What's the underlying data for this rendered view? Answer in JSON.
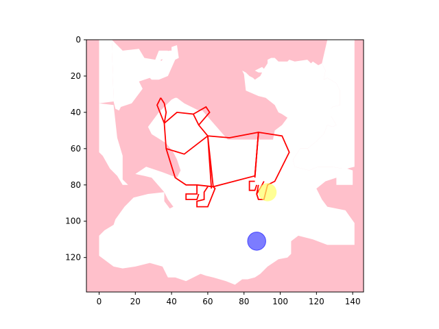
{
  "figure": {
    "background": "#ffffff",
    "x_range": [
      -7,
      146
    ],
    "y_range": [
      0,
      139
    ],
    "x_ticks": [
      0,
      20,
      40,
      60,
      80,
      100,
      120,
      140
    ],
    "y_ticks": [
      0,
      20,
      40,
      60,
      80,
      100,
      120
    ],
    "y_inverted": true
  },
  "board": {
    "fill_color": "#ffc0cb",
    "white_regions": [
      [
        [
          7,
          0
        ],
        [
          13,
          6
        ],
        [
          22,
          5
        ],
        [
          25,
          10
        ],
        [
          31,
          11
        ],
        [
          33,
          6
        ],
        [
          38,
          6
        ],
        [
          37,
          10
        ],
        [
          34,
          11
        ],
        [
          36,
          19
        ],
        [
          35,
          16
        ],
        [
          33,
          15
        ],
        [
          34,
          12
        ],
        [
          35,
          11
        ],
        [
          34,
          7
        ],
        [
          39,
          6
        ],
        [
          40,
          6
        ],
        [
          40,
          4
        ],
        [
          43,
          3
        ],
        [
          44,
          10
        ],
        [
          42,
          11
        ],
        [
          38,
          20
        ],
        [
          33,
          22
        ],
        [
          29,
          22
        ],
        [
          28,
          21
        ],
        [
          22,
          23
        ],
        [
          24,
          27
        ],
        [
          18,
          35
        ],
        [
          12,
          37
        ],
        [
          11,
          39
        ],
        [
          9,
          38
        ],
        [
          8,
          34
        ]
      ],
      [
        [
          0,
          35
        ],
        [
          8,
          36
        ],
        [
          10,
          54
        ],
        [
          13,
          64
        ],
        [
          13,
          77
        ],
        [
          16,
          80
        ],
        [
          20,
          74
        ],
        [
          26,
          70
        ],
        [
          35,
          73
        ],
        [
          43,
          76
        ],
        [
          45,
          72
        ],
        [
          43,
          66
        ],
        [
          41,
          62
        ],
        [
          37,
          57
        ],
        [
          29,
          52
        ],
        [
          27,
          48
        ],
        [
          33,
          40
        ],
        [
          40,
          33
        ],
        [
          42,
          32
        ],
        [
          43,
          32
        ],
        [
          47,
          35
        ],
        [
          55,
          39
        ],
        [
          57,
          39
        ],
        [
          71,
          55
        ],
        [
          96,
          55
        ],
        [
          97,
          50
        ],
        [
          101,
          47
        ],
        [
          104,
          43
        ],
        [
          101,
          41
        ],
        [
          99,
          40
        ],
        [
          97,
          36
        ],
        [
          92,
          32
        ],
        [
          88,
          31
        ],
        [
          81,
          28
        ],
        [
          80,
          19
        ],
        [
          79,
          17
        ],
        [
          81,
          18
        ],
        [
          83,
          20
        ],
        [
          85,
          21
        ],
        [
          86,
          22
        ],
        [
          89,
          20
        ],
        [
          90,
          18
        ],
        [
          88,
          18
        ],
        [
          86,
          17
        ],
        [
          90,
          15
        ],
        [
          91,
          16
        ],
        [
          93,
          13
        ],
        [
          93,
          11
        ],
        [
          95,
          10
        ],
        [
          97,
          10
        ],
        [
          99,
          12
        ],
        [
          104,
          12
        ],
        [
          105,
          11
        ],
        [
          108,
          12
        ],
        [
          115,
          11
        ],
        [
          117,
          13
        ],
        [
          118,
          12
        ],
        [
          121,
          14
        ],
        [
          123,
          13
        ],
        [
          125,
          17
        ],
        [
          124,
          22
        ],
        [
          126,
          21
        ],
        [
          131,
          24
        ],
        [
          133,
          28
        ],
        [
          133,
          36
        ],
        [
          129,
          37
        ],
        [
          128,
          38
        ],
        [
          128,
          42
        ],
        [
          131,
          47
        ],
        [
          129,
          48
        ],
        [
          126,
          47
        ],
        [
          124,
          52
        ],
        [
          120,
          56
        ],
        [
          120,
          56
        ],
        [
          115,
          60
        ],
        [
          111,
          60
        ],
        [
          107,
          66
        ],
        [
          108,
          70
        ],
        [
          116,
          72
        ],
        [
          121,
          70
        ],
        [
          129,
          70
        ],
        [
          134,
          71
        ],
        [
          137,
          71
        ],
        [
          140,
          72
        ],
        [
          140,
          80
        ],
        [
          131,
          80
        ],
        [
          131,
          76
        ],
        [
          125,
          78
        ],
        [
          120,
          82
        ],
        [
          123,
          88
        ],
        [
          126,
          92
        ],
        [
          136,
          94
        ],
        [
          141,
          101
        ],
        [
          141,
          113
        ],
        [
          134,
          113
        ],
        [
          126,
          113
        ],
        [
          118,
          110
        ],
        [
          110,
          108
        ],
        [
          106,
          111
        ],
        [
          106,
          118
        ],
        [
          104,
          120
        ],
        [
          99,
          121
        ],
        [
          93,
          125
        ],
        [
          89,
          129
        ],
        [
          86,
          131
        ],
        [
          82,
          132
        ],
        [
          79,
          132
        ],
        [
          75,
          135
        ],
        [
          70,
          133
        ],
        [
          63,
          131
        ],
        [
          59,
          130
        ],
        [
          56,
          129
        ],
        [
          48,
          133
        ],
        [
          42,
          131
        ],
        [
          38,
          131
        ],
        [
          35,
          125
        ],
        [
          28,
          123
        ],
        [
          20,
          125
        ],
        [
          13,
          126
        ],
        [
          8,
          125
        ],
        [
          0,
          119
        ],
        [
          0,
          108
        ],
        [
          3,
          105
        ],
        [
          8,
          102
        ],
        [
          9,
          99
        ],
        [
          14,
          92
        ],
        [
          19,
          87
        ],
        [
          27,
          85
        ],
        [
          36,
          84
        ],
        [
          36,
          89
        ],
        [
          39,
          93
        ],
        [
          41,
          92
        ],
        [
          38,
          88
        ],
        [
          36,
          84
        ],
        [
          29,
          76
        ],
        [
          25,
          75
        ],
        [
          20,
          74
        ],
        [
          16,
          80
        ],
        [
          13,
          80
        ],
        [
          10,
          75
        ],
        [
          6,
          71
        ],
        [
          2,
          64
        ],
        [
          0,
          62
        ]
      ]
    ],
    "overlay_white": [
      [
        [
          0,
          0
        ],
        [
          7,
          0
        ],
        [
          8,
          34
        ],
        [
          0,
          35
        ]
      ],
      [
        [
          126,
          0
        ],
        [
          141,
          0
        ],
        [
          141,
          70
        ],
        [
          137,
          71
        ],
        [
          134,
          71
        ],
        [
          129,
          70
        ],
        [
          121,
          70
        ],
        [
          116,
          72
        ],
        [
          108,
          70
        ],
        [
          107,
          66
        ],
        [
          111,
          60
        ],
        [
          115,
          60
        ],
        [
          120,
          56
        ],
        [
          124,
          52
        ],
        [
          126,
          47
        ],
        [
          129,
          48
        ],
        [
          131,
          47
        ],
        [
          128,
          42
        ],
        [
          128,
          38
        ],
        [
          129,
          37
        ],
        [
          133,
          36
        ],
        [
          133,
          28
        ],
        [
          131,
          24
        ],
        [
          126,
          21
        ],
        [
          124,
          22
        ],
        [
          125,
          17
        ],
        [
          123,
          13
        ]
      ]
    ]
  },
  "figure_outline": {
    "stroke_color": "#ff0000",
    "segments": [
      [
        [
          34,
          32
        ],
        [
          36,
          35
        ],
        [
          37,
          40
        ],
        [
          36,
          46
        ],
        [
          37,
          60
        ],
        [
          42,
          76
        ],
        [
          48,
          80
        ],
        [
          54,
          80
        ],
        [
          63,
          81
        ],
        [
          86,
          75
        ],
        [
          88,
          51
        ],
        [
          101,
          53
        ],
        [
          105,
          62
        ],
        [
          97,
          78
        ],
        [
          93,
          80
        ],
        [
          91,
          88
        ],
        [
          88,
          88
        ],
        [
          87,
          85
        ],
        [
          90,
          80
        ],
        [
          91,
          78
        ]
      ],
      [
        [
          36,
          46
        ],
        [
          43,
          40
        ],
        [
          52,
          41
        ],
        [
          55,
          47
        ],
        [
          60,
          53
        ],
        [
          72,
          54
        ],
        [
          88,
          51
        ]
      ],
      [
        [
          34,
          32
        ],
        [
          32,
          36
        ],
        [
          36,
          46
        ]
      ],
      [
        [
          52,
          41
        ],
        [
          59,
          37
        ],
        [
          61,
          40
        ],
        [
          55,
          47
        ]
      ],
      [
        [
          37,
          60
        ],
        [
          47,
          63
        ],
        [
          60,
          53
        ]
      ],
      [
        [
          60,
          53
        ],
        [
          63,
          81
        ],
        [
          64,
          82
        ],
        [
          60,
          92
        ],
        [
          54,
          92
        ],
        [
          54,
          89
        ],
        [
          58,
          88
        ],
        [
          58,
          84
        ],
        [
          60,
          81
        ]
      ],
      [
        [
          54,
          80
        ],
        [
          54,
          85
        ],
        [
          48,
          85
        ],
        [
          48,
          88
        ],
        [
          54,
          88
        ],
        [
          55,
          85
        ]
      ],
      [
        [
          86,
          75
        ],
        [
          88,
          51
        ]
      ],
      [
        [
          86,
          78
        ],
        [
          83,
          78
        ],
        [
          83,
          83
        ],
        [
          86,
          83
        ],
        [
          87,
          80
        ]
      ],
      [
        [
          88,
          80
        ],
        [
          87,
          85
        ],
        [
          88,
          88
        ]
      ]
    ],
    "extra_lines": [
      [
        [
          60,
          53
        ],
        [
          62,
          82
        ]
      ],
      [
        [
          86,
          76
        ],
        [
          88,
          51
        ]
      ]
    ]
  },
  "target_marker": {
    "color": "#ffff66",
    "opacity": 0.7,
    "center": [
      93,
      84
    ],
    "radius": 5
  },
  "player_marker": {
    "color": "#4444ff",
    "opacity": 0.7,
    "center": [
      87,
      111
    ],
    "radius": 5
  }
}
